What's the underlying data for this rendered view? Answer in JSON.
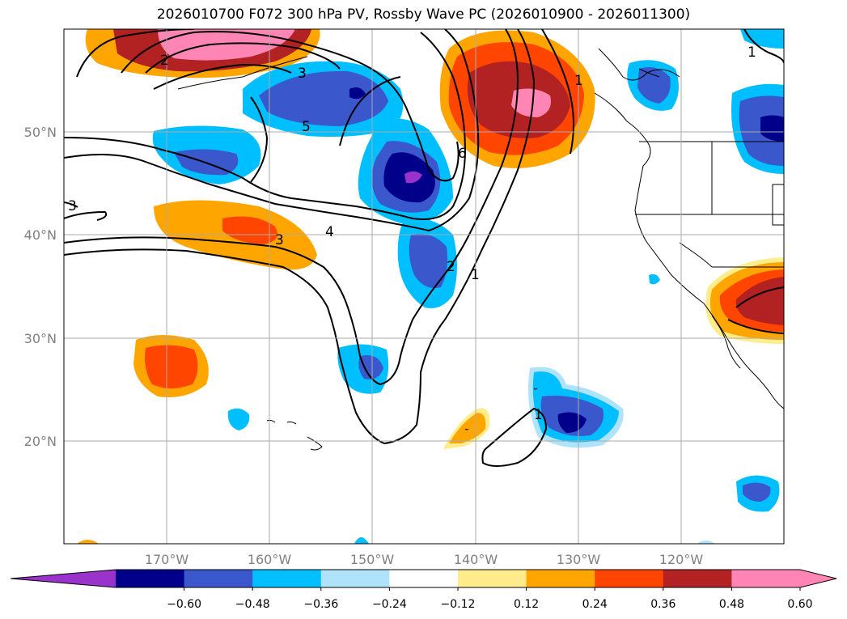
{
  "title": "2026010700 F072 300 hPa PV, Rossby Wave PC (2026010900 - 2026011300)",
  "map": {
    "lat_ticks": [
      {
        "lat": 50,
        "label": "50°N"
      },
      {
        "lat": 40,
        "label": "40°N"
      },
      {
        "lat": 30,
        "label": "30°N"
      },
      {
        "lat": 20,
        "label": "20°N"
      }
    ],
    "lon_ticks": [
      {
        "lon": -170,
        "label": "170°W"
      },
      {
        "lon": -160,
        "label": "160°W"
      },
      {
        "lon": -150,
        "label": "150°W"
      },
      {
        "lon": -140,
        "label": "140°W"
      },
      {
        "lon": -130,
        "label": "130°W"
      },
      {
        "lon": -120,
        "label": "120°W"
      }
    ],
    "extent": {
      "lon": [
        -180,
        -110
      ],
      "lat": [
        10,
        60
      ]
    },
    "grid": true,
    "contour_labels": [
      "2",
      "3",
      "5",
      "6",
      "1",
      "3",
      "4",
      "3",
      "2",
      "1",
      "1",
      "1"
    ]
  },
  "colorbar": {
    "colors": [
      "#9933cc",
      "#00008b",
      "#3a57cc",
      "#00bfff",
      "#afe3fb",
      "#ffffff",
      "#ffec8b",
      "#ffa500",
      "#ff4500",
      "#b22222",
      "#ff85b4",
      "#ff85b4"
    ],
    "under_color": "#9933cc",
    "over_color": "#ff85b4",
    "ticks": [
      "−0.60",
      "−0.48",
      "−0.36",
      "−0.24",
      "−0.12",
      "0.12",
      "0.24",
      "0.36",
      "0.48",
      "0.60"
    ]
  }
}
